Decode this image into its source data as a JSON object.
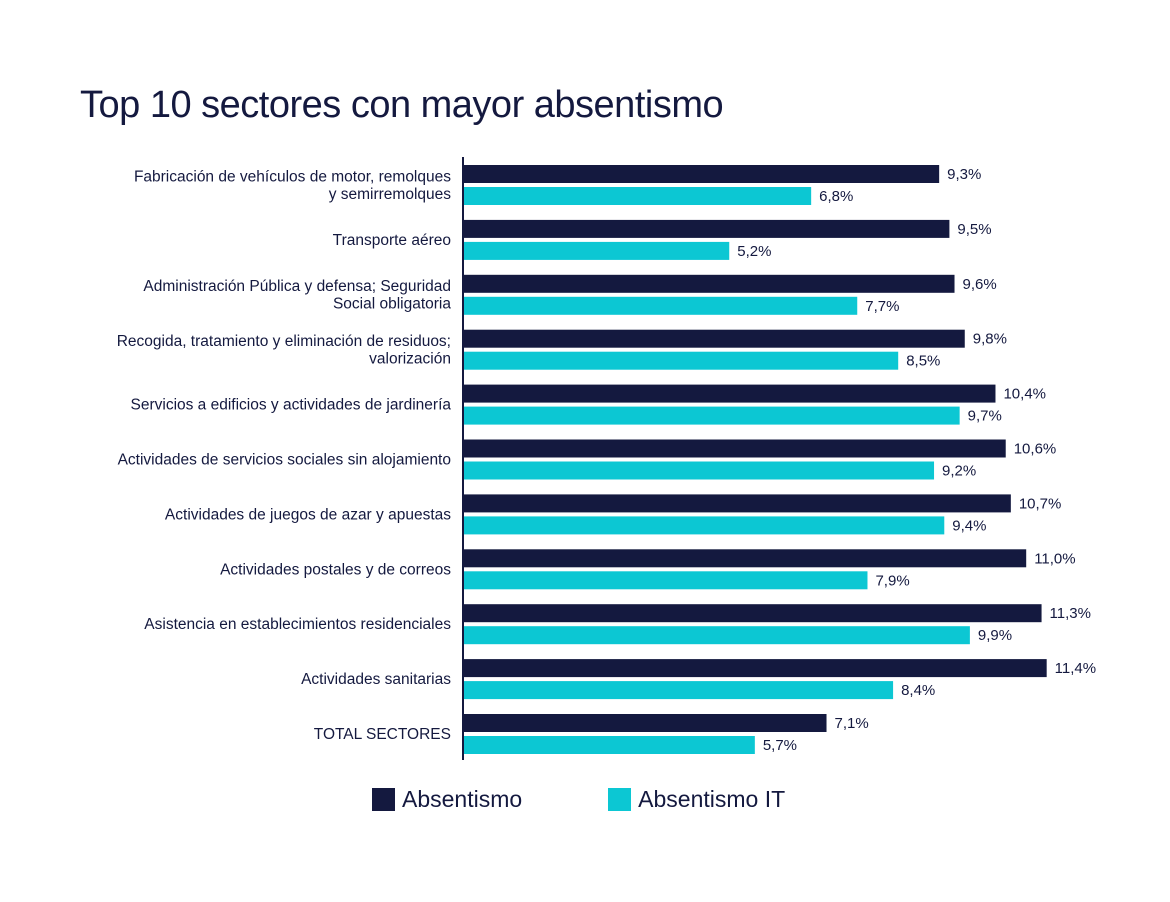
{
  "colors": {
    "absentismo": "#14193f",
    "absentismo_it": "#0cc7d3",
    "text": "#14193f"
  },
  "chart_data": {
    "type": "bar",
    "orientation": "horizontal",
    "title": "Top 10 sectores con mayor absentismo",
    "categories": [
      [
        "Fabricación de vehículos de motor, remolques",
        "y semirremolques"
      ],
      [
        "Transporte aéreo"
      ],
      [
        "Administración Pública y defensa; Seguridad",
        "Social obligatoria"
      ],
      [
        "Recogida, tratamiento y eliminación de residuos;",
        "valorización"
      ],
      [
        "Servicios a edificios y actividades de jardinería"
      ],
      [
        "Actividades de servicios sociales sin alojamiento"
      ],
      [
        "Actividades de juegos de azar y apuestas"
      ],
      [
        "Actividades postales y de correos"
      ],
      [
        "Asistencia en establecimientos residenciales"
      ],
      [
        "Actividades sanitarias"
      ],
      [
        "TOTAL SECTORES"
      ]
    ],
    "series": [
      {
        "name": "Absentismo",
        "color": "#14193f",
        "values": [
          9.3,
          9.5,
          9.6,
          9.8,
          10.4,
          10.6,
          10.7,
          11.0,
          11.3,
          11.4,
          7.1
        ],
        "labels": [
          "9,3%",
          "9,5%",
          "9,6%",
          "9,8%",
          "10,4%",
          "10,6%",
          "10,7%",
          "11,0%",
          "11,3%",
          "11,4%",
          "7,1%"
        ]
      },
      {
        "name": "Absentismo IT",
        "color": "#0cc7d3",
        "values": [
          6.8,
          5.2,
          7.7,
          8.5,
          9.7,
          9.2,
          9.4,
          7.9,
          9.9,
          8.4,
          5.7
        ],
        "labels": [
          "6,8%",
          "5,2%",
          "7,7%",
          "8,5%",
          "9,7%",
          "9,2%",
          "9,4%",
          "7,9%",
          "9,9%",
          "8,4%",
          "5,7%"
        ]
      }
    ],
    "xlim": [
      0,
      12
    ],
    "grid": false,
    "legend_position": "bottom"
  }
}
